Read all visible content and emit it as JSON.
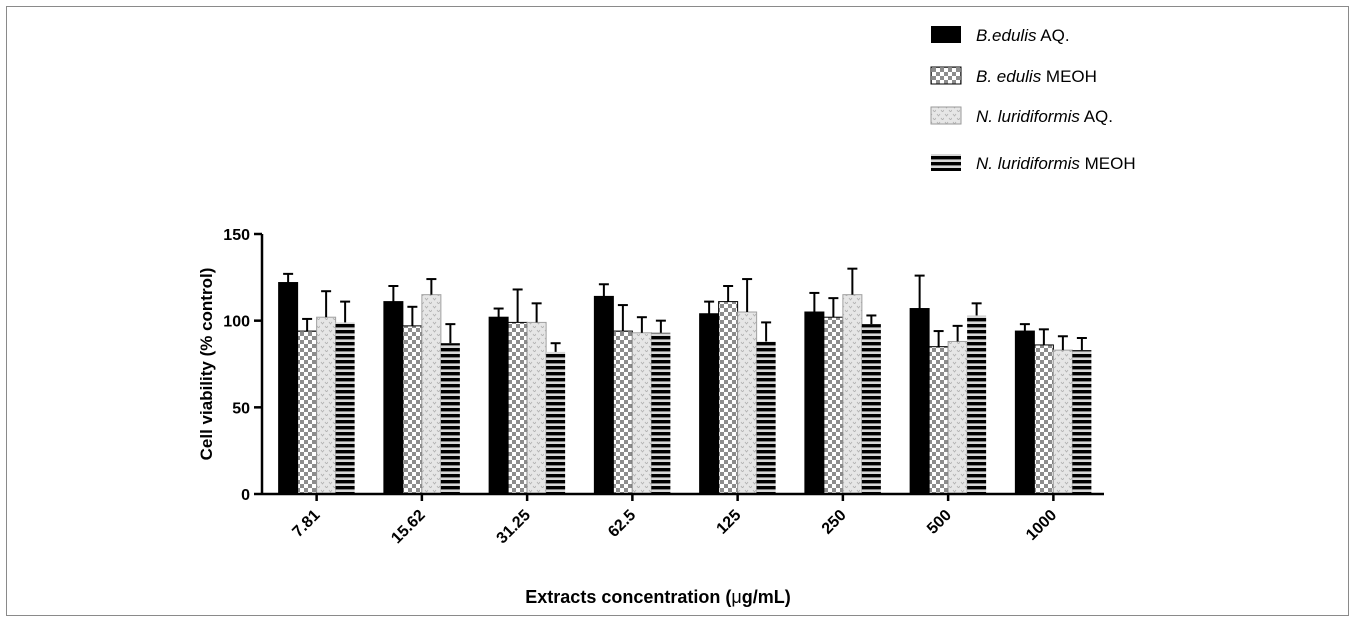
{
  "chart_data": {
    "type": "bar",
    "xlabel_main": "Extracts concentration (",
    "xlabel_mu": "μ",
    "xlabel_rest": "g/mL)",
    "ylabel": "Cell viability (% control)",
    "ylim": [
      0,
      150
    ],
    "yticks": [
      "0",
      "50",
      "100",
      "150"
    ],
    "categories": [
      "7.81",
      "15.62",
      "31.25",
      "62.5",
      "125",
      "250",
      "500",
      "1000"
    ],
    "grid": false,
    "legend_position": "top-right",
    "series": [
      {
        "legend_italic": "B.edulis",
        "legend_rest": " AQ.",
        "pattern": "solid-black",
        "values": [
          122,
          111,
          102,
          114,
          104,
          105,
          107,
          94
        ],
        "errors": [
          5,
          9,
          5,
          7,
          7,
          11,
          19,
          4
        ]
      },
      {
        "legend_italic": "B. edulis",
        "legend_rest": " MEOH",
        "pattern": "checkered",
        "values": [
          94,
          97,
          99,
          94,
          111,
          102,
          85,
          86
        ],
        "errors": [
          7,
          11,
          19,
          15,
          9,
          11,
          9,
          9
        ]
      },
      {
        "legend_italic": "N. luridiformis",
        "legend_rest": " AQ.",
        "pattern": "dotted-light",
        "values": [
          102,
          115,
          99,
          93,
          105,
          115,
          88,
          83
        ],
        "errors": [
          15,
          9,
          11,
          9,
          19,
          15,
          9,
          8
        ]
      },
      {
        "legend_italic": "N. luridiformis",
        "legend_rest": " MEOH",
        "pattern": "horizontal-stripes",
        "values": [
          99,
          87,
          82,
          93,
          88,
          98,
          103,
          83
        ],
        "errors": [
          12,
          11,
          5,
          7,
          11,
          5,
          7,
          7
        ]
      }
    ]
  }
}
